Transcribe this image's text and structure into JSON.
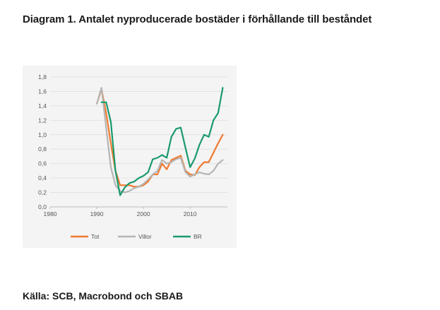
{
  "heading": "Diagram 1. Antalet nyproducerade bostäder i förhållande till beståndet",
  "source": "Källa: SCB, Macrobond och SBAB",
  "chart_data": {
    "type": "line",
    "title": "",
    "xlabel": "",
    "ylabel": "",
    "xlim": [
      1980,
      2018
    ],
    "ylim": [
      0,
      1.8
    ],
    "x_ticks": [
      1980,
      1990,
      2000,
      2010
    ],
    "x_tick_labels": [
      "1980",
      "1990",
      "2000",
      "2010"
    ],
    "y_ticks": [
      0,
      0.2,
      0.4,
      0.6,
      0.8,
      1.0,
      1.2,
      1.4,
      1.6,
      1.8
    ],
    "y_tick_labels": [
      "0,0",
      "0,2",
      "0,4",
      "0,6",
      "0,8",
      "1,0",
      "1,2",
      "1,4",
      "1,6",
      "1,8"
    ],
    "grid": "horizontal",
    "legend_position": "bottom",
    "series": [
      {
        "name": "Tot",
        "color": "#f07a30",
        "x": [
          1990,
          1991,
          1992,
          1993,
          1994,
          1995,
          1996,
          1997,
          1998,
          1999,
          2000,
          2001,
          2002,
          2003,
          2004,
          2005,
          2006,
          2007,
          2008,
          2009,
          2010,
          2011,
          2012,
          2013,
          2014,
          2015,
          2016,
          2017
        ],
        "values": [
          1.43,
          1.63,
          1.3,
          0.88,
          0.5,
          0.3,
          0.3,
          0.3,
          0.28,
          0.28,
          0.3,
          0.35,
          0.45,
          0.45,
          0.6,
          0.52,
          0.65,
          0.68,
          0.71,
          0.5,
          0.45,
          0.44,
          0.55,
          0.62,
          0.62,
          0.75,
          0.88,
          1.0
        ]
      },
      {
        "name": "Villor",
        "color": "#b5b5b5",
        "x": [
          1990,
          1991,
          1992,
          1993,
          1994,
          1995,
          1996,
          1997,
          1998,
          1999,
          2000,
          2001,
          2002,
          2003,
          2004,
          2005,
          2006,
          2007,
          2008,
          2009,
          2010,
          2011,
          2012,
          2013,
          2014,
          2015,
          2016,
          2017
        ],
        "values": [
          1.43,
          1.65,
          1.1,
          0.55,
          0.3,
          0.22,
          0.2,
          0.22,
          0.26,
          0.28,
          0.32,
          0.38,
          0.45,
          0.5,
          0.65,
          0.6,
          0.62,
          0.66,
          0.68,
          0.48,
          0.42,
          0.45,
          0.48,
          0.46,
          0.45,
          0.5,
          0.6,
          0.65
        ]
      },
      {
        "name": "BR",
        "color": "#1a9a6e",
        "x": [
          1991,
          1992,
          1993,
          1994,
          1995,
          1996,
          1997,
          1998,
          1999,
          2000,
          2001,
          2002,
          2003,
          2004,
          2005,
          2006,
          2007,
          2008,
          2009,
          2010,
          2011,
          2012,
          2013,
          2014,
          2015,
          2016,
          2017
        ],
        "values": [
          1.45,
          1.45,
          1.18,
          0.5,
          0.16,
          0.27,
          0.33,
          0.35,
          0.4,
          0.43,
          0.48,
          0.66,
          0.68,
          0.72,
          0.68,
          0.97,
          1.08,
          1.1,
          0.82,
          0.55,
          0.67,
          0.86,
          1.0,
          0.97,
          1.2,
          1.3,
          1.65
        ]
      }
    ]
  }
}
